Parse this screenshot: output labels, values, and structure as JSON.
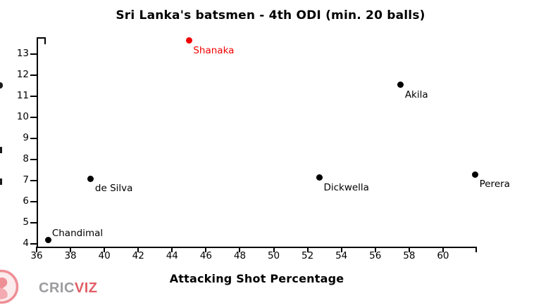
{
  "logo": {
    "brand_part_gray": "CRIC",
    "brand_part_red": "VIZ"
  },
  "colors": {
    "point_default": "#000000",
    "point_highlight": "#f20000",
    "axis": "#000000",
    "logo_gray": "#9c9ca0",
    "logo_red": "#e25f66",
    "logo_icon_pink": "#ee8f96"
  },
  "chart_data": {
    "type": "scatter",
    "title": "Sri Lanka's batsmen - 4th ODI (min. 20 balls)",
    "xlabel": "Attacking Shot Percentage",
    "ylabel": "",
    "xlim": [
      36,
      62
    ],
    "ylim": [
      4,
      13.8
    ],
    "x_ticks": [
      36,
      38,
      40,
      42,
      44,
      46,
      48,
      50,
      52,
      54,
      56,
      58,
      60
    ],
    "y_ticks": [
      4,
      5,
      6,
      7,
      8,
      9,
      10,
      11,
      12,
      13
    ],
    "grid": false,
    "legend": false,
    "has_terminal_x_tick": true,
    "has_y_axis_top_cap": true,
    "points": [
      {
        "label": "Chandimal",
        "x": 36.7,
        "y": 4.2,
        "color": "#000000",
        "label_position": "above-right"
      },
      {
        "label": "de Silva",
        "x": 39.2,
        "y": 7.1,
        "color": "#000000",
        "label_position": "below-right"
      },
      {
        "label": "Shanaka",
        "x": 45.0,
        "y": 13.65,
        "color": "#f20000",
        "label_position": "below-right"
      },
      {
        "label": "Dickwella",
        "x": 52.7,
        "y": 7.15,
        "color": "#000000",
        "label_position": "below-right"
      },
      {
        "label": "Akila",
        "x": 57.5,
        "y": 11.55,
        "color": "#000000",
        "label_position": "below-right"
      },
      {
        "label": "Perera",
        "x": 61.9,
        "y": 7.3,
        "color": "#000000",
        "label_position": "below-right"
      }
    ]
  }
}
